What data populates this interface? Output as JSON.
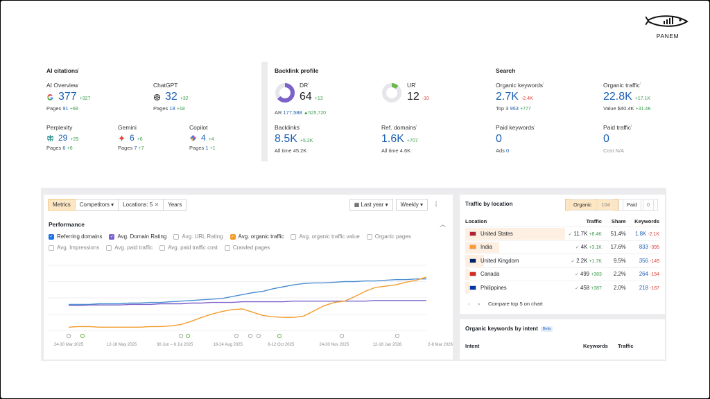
{
  "logo": {
    "text": "PANEM"
  },
  "ai_citations": {
    "title": "AI citations",
    "ai_overview": {
      "label": "AI Overview",
      "value": "377",
      "delta": "+327",
      "pages_label": "Pages",
      "pages": "91",
      "pages_delta": "+68"
    },
    "chatgpt": {
      "label": "ChatGPT",
      "value": "32",
      "delta": "+32",
      "pages_label": "Pages",
      "pages": "18",
      "pages_delta": "+18"
    },
    "perplexity": {
      "label": "Perplexity",
      "value": "29",
      "delta": "+29",
      "pages_label": "Pages",
      "pages": "6",
      "pages_delta": "+6"
    },
    "gemini": {
      "label": "Gemini",
      "value": "6",
      "delta": "+6",
      "pages_label": "Pages",
      "pages": "7",
      "pages_delta": "+7"
    },
    "copilot": {
      "label": "Copilot",
      "value": "4",
      "delta": "+4",
      "pages_label": "Pages",
      "pages": "1",
      "pages_delta": "+1"
    }
  },
  "backlink_profile": {
    "title": "Backlink profile",
    "dr": {
      "label": "DR",
      "value": "64",
      "delta": "+13",
      "ratio": 0.64
    },
    "ar": {
      "label": "AR",
      "value": "177,588",
      "delta": "525,720"
    },
    "ur": {
      "label": "UR",
      "value": "12",
      "delta": "-10",
      "ratio": 0.12
    },
    "backlinks": {
      "label": "Backlinks",
      "value": "8.5K",
      "delta": "+5.2K",
      "alltime_label": "All time",
      "alltime": "45.2K"
    },
    "ref_domains": {
      "label": "Ref. domains",
      "value": "1.6K",
      "delta": "+707",
      "alltime_label": "All time",
      "alltime": "4.6K"
    }
  },
  "search": {
    "title": "Search",
    "organic_keywords": {
      "label": "Organic keywords",
      "value": "2.7K",
      "delta": "-2.4K",
      "top3_label": "Top 3",
      "top3": "953",
      "top3_delta": "+777"
    },
    "organic_traffic": {
      "label": "Organic traffic",
      "value": "22.8K",
      "delta": "+17.1K",
      "value_label": "Value",
      "value_amt": "$40.4K",
      "value_delta": "+31.4K"
    },
    "paid_keywords": {
      "label": "Paid keywords",
      "value": "0",
      "ads_label": "Ads",
      "ads": "0"
    },
    "paid_traffic": {
      "label": "Paid traffic",
      "value": "0",
      "cost_label": "Cost",
      "cost": "N/A"
    }
  },
  "toolbar": {
    "tabs": [
      "Metrics",
      "Competitors",
      "Locations: 5",
      "Years"
    ],
    "period": "Last year",
    "interval": "Weekly"
  },
  "performance": {
    "title": "Performance",
    "checks_row1": [
      {
        "label": "Referring domains",
        "checked": true,
        "color": "#1a73e8"
      },
      {
        "label": "Avg. Domain Rating",
        "checked": true,
        "color": "#7b61c9"
      },
      {
        "label": "Avg. URL Rating",
        "checked": false,
        "color": "#bbbbbb"
      },
      {
        "label": "Avg. organic traffic",
        "checked": true,
        "color": "#f29b2b"
      },
      {
        "label": "Avg. organic traffic value",
        "checked": false,
        "color": "#bbbbbb"
      },
      {
        "label": "Organic pages",
        "checked": false,
        "color": "#bbbbbb"
      }
    ],
    "checks_row2": [
      {
        "label": "Avg. Impressions",
        "checked": false,
        "color": "#bbbbbb"
      },
      {
        "label": "Avg. paid traffic",
        "checked": false,
        "color": "#bbbbbb"
      },
      {
        "label": "Avg. paid traffic cost",
        "checked": false,
        "color": "#bbbbbb"
      },
      {
        "label": "Crawled pages",
        "checked": false,
        "color": "#bbbbbb"
      }
    ]
  },
  "chart_data": {
    "type": "line",
    "x_ticks": [
      "24-30 Mar 2025",
      "12-18 May 2025",
      "30 Jun – 6 Jul 2025",
      "18-24 Aug 2025",
      "6-12 Oct 2025",
      "24-30 Nov 2025",
      "12-18 Jan 2026",
      "2-8 Mar 2026"
    ],
    "series": [
      {
        "name": "Referring domains",
        "color": "#4a8fd1",
        "values": [
          0.4,
          0.4,
          0.4,
          0.41,
          0.41,
          0.41,
          0.42,
          0.42,
          0.43,
          0.43,
          0.44,
          0.45,
          0.46,
          0.47,
          0.48,
          0.49,
          0.52,
          0.55,
          0.58,
          0.6,
          0.64,
          0.67,
          0.7,
          0.72,
          0.73,
          0.73,
          0.74,
          0.75,
          0.75,
          0.76,
          0.76,
          0.77,
          0.78,
          0.78,
          0.79,
          0.79
        ]
      },
      {
        "name": "Avg. Domain Rating",
        "color": "#7b61c9",
        "values": [
          0.38,
          0.38,
          0.39,
          0.39,
          0.39,
          0.39,
          0.4,
          0.4,
          0.4,
          0.41,
          0.41,
          0.41,
          0.42,
          0.42,
          0.43,
          0.43,
          0.43,
          0.44,
          0.44,
          0.44,
          0.44,
          0.44,
          0.45,
          0.45,
          0.45,
          0.45,
          0.45,
          0.45,
          0.45,
          0.45,
          0.46,
          0.46,
          0.46,
          0.46,
          0.46,
          0.46
        ]
      },
      {
        "name": "Avg. organic traffic",
        "color": "#f29b2b",
        "values": [
          0.05,
          0.06,
          0.06,
          0.05,
          0.05,
          0.05,
          0.05,
          0.05,
          0.06,
          0.06,
          0.07,
          0.09,
          0.14,
          0.2,
          0.25,
          0.29,
          0.32,
          0.33,
          0.28,
          0.23,
          0.21,
          0.2,
          0.2,
          0.22,
          0.3,
          0.38,
          0.43,
          0.45,
          0.52,
          0.6,
          0.66,
          0.68,
          0.7,
          0.74,
          0.77,
          0.82
        ]
      }
    ]
  },
  "traffic_by_location": {
    "title": "Traffic by location",
    "tabs": [
      {
        "label": "Organic",
        "count": "104"
      },
      {
        "label": "Paid",
        "count": "0"
      }
    ],
    "headers": [
      "Location",
      "Traffic",
      "Share",
      "Keywords"
    ],
    "rows": [
      {
        "name": "United States",
        "traffic": "11.7K",
        "traffic_delta": "+8.4K",
        "share": "51.4%",
        "share_ratio": 0.514,
        "keywords": "1.8K",
        "kw_delta": "-2.1K",
        "flag": "#b22234"
      },
      {
        "name": "India",
        "traffic": "4K",
        "traffic_delta": "+3.1K",
        "share": "17.6%",
        "share_ratio": 0.176,
        "keywords": "833",
        "kw_delta": "-395",
        "flag": "#ff9933"
      },
      {
        "name": "United Kingdom",
        "traffic": "2.2K",
        "traffic_delta": "+1.7K",
        "share": "9.5%",
        "share_ratio": 0.095,
        "keywords": "356",
        "kw_delta": "-149",
        "flag": "#012169"
      },
      {
        "name": "Canada",
        "traffic": "499",
        "traffic_delta": "+383",
        "share": "2.2%",
        "share_ratio": 0.022,
        "keywords": "264",
        "kw_delta": "-154",
        "flag": "#d52b1e"
      },
      {
        "name": "Philippines",
        "traffic": "458",
        "traffic_delta": "+387",
        "share": "2.0%",
        "share_ratio": 0.02,
        "keywords": "218",
        "kw_delta": "-167",
        "flag": "#0038a8"
      }
    ],
    "compare": "Compare top 5 on chart"
  },
  "keywords_by_intent": {
    "title": "Organic keywords by intent",
    "badge": "Beta",
    "headers": [
      "Intent",
      "Keywords",
      "Traffic"
    ]
  }
}
